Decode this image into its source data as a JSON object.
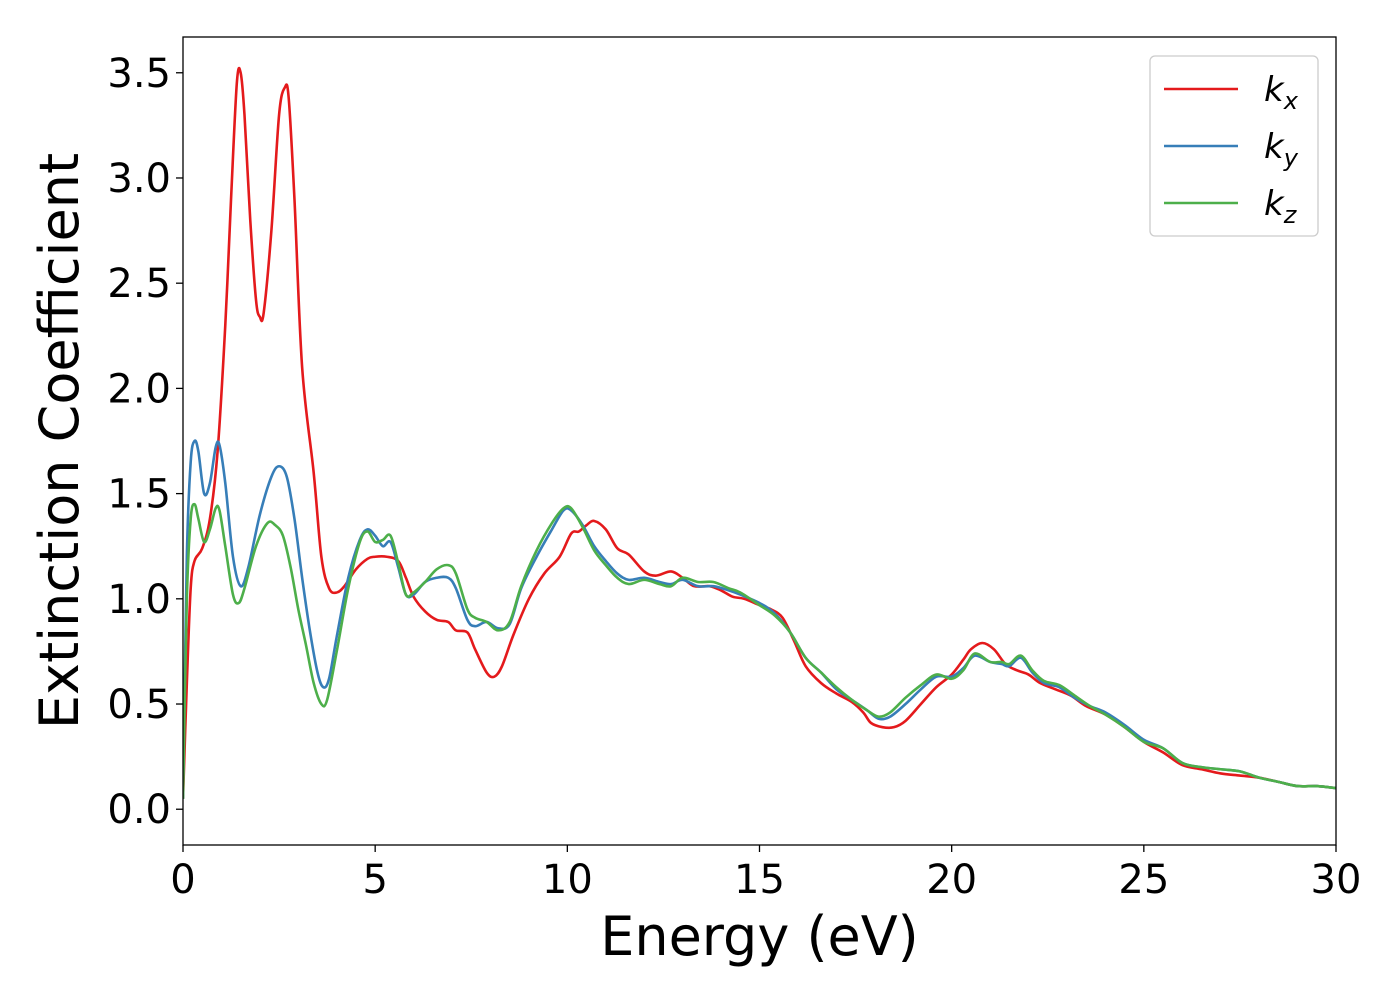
{
  "chart_data": {
    "type": "line",
    "title": "",
    "xlabel": "Energy (eV)",
    "ylabel": "Extinction Coefficient",
    "xlim": [
      0,
      30
    ],
    "ylim": [
      -0.17,
      3.67
    ],
    "xticks": [
      0,
      5,
      10,
      15,
      20,
      25,
      30
    ],
    "xtick_labels": [
      "0",
      "5",
      "10",
      "15",
      "20",
      "25",
      "30"
    ],
    "yticks": [
      0.0,
      0.5,
      1.0,
      1.5,
      2.0,
      2.5,
      3.0,
      3.5
    ],
    "ytick_labels": [
      "0.0",
      "0.5",
      "1.0",
      "1.5",
      "2.0",
      "2.5",
      "3.0",
      "3.5"
    ],
    "grid": false,
    "legend": {
      "position": "top-right"
    },
    "series": [
      {
        "name": "k_x",
        "label_main": "k",
        "label_sub": "x",
        "color": "#e41a1c",
        "points": [
          [
            0,
            0.05
          ],
          [
            0.1,
            0.6
          ],
          [
            0.2,
            1.05
          ],
          [
            0.3,
            1.18
          ],
          [
            0.5,
            1.24
          ],
          [
            0.7,
            1.38
          ],
          [
            0.9,
            1.7
          ],
          [
            1.1,
            2.3
          ],
          [
            1.25,
            2.9
          ],
          [
            1.4,
            3.45
          ],
          [
            1.5,
            3.5
          ],
          [
            1.6,
            3.3
          ],
          [
            1.75,
            2.8
          ],
          [
            1.9,
            2.42
          ],
          [
            2.0,
            2.34
          ],
          [
            2.1,
            2.36
          ],
          [
            2.3,
            2.75
          ],
          [
            2.5,
            3.3
          ],
          [
            2.65,
            3.43
          ],
          [
            2.75,
            3.38
          ],
          [
            2.9,
            2.9
          ],
          [
            3.1,
            2.1
          ],
          [
            3.4,
            1.6
          ],
          [
            3.6,
            1.2
          ],
          [
            3.8,
            1.05
          ],
          [
            4.0,
            1.03
          ],
          [
            4.2,
            1.06
          ],
          [
            4.5,
            1.14
          ],
          [
            4.8,
            1.19
          ],
          [
            5.0,
            1.2
          ],
          [
            5.3,
            1.2
          ],
          [
            5.6,
            1.18
          ],
          [
            5.8,
            1.1
          ],
          [
            6.0,
            1.01
          ],
          [
            6.3,
            0.94
          ],
          [
            6.6,
            0.9
          ],
          [
            6.9,
            0.89
          ],
          [
            7.1,
            0.85
          ],
          [
            7.4,
            0.84
          ],
          [
            7.6,
            0.76
          ],
          [
            7.9,
            0.65
          ],
          [
            8.1,
            0.63
          ],
          [
            8.3,
            0.68
          ],
          [
            8.6,
            0.83
          ],
          [
            9.0,
            1.0
          ],
          [
            9.4,
            1.12
          ],
          [
            9.8,
            1.2
          ],
          [
            10.1,
            1.31
          ],
          [
            10.3,
            1.32
          ],
          [
            10.5,
            1.35
          ],
          [
            10.7,
            1.37
          ],
          [
            11.0,
            1.33
          ],
          [
            11.3,
            1.24
          ],
          [
            11.6,
            1.21
          ],
          [
            12.0,
            1.13
          ],
          [
            12.3,
            1.11
          ],
          [
            12.7,
            1.13
          ],
          [
            13.0,
            1.1
          ],
          [
            13.3,
            1.06
          ],
          [
            13.7,
            1.06
          ],
          [
            14.0,
            1.04
          ],
          [
            14.3,
            1.01
          ],
          [
            14.6,
            1.0
          ],
          [
            15.0,
            0.97
          ],
          [
            15.3,
            0.95
          ],
          [
            15.6,
            0.91
          ],
          [
            15.9,
            0.8
          ],
          [
            16.2,
            0.68
          ],
          [
            16.6,
            0.6
          ],
          [
            17.0,
            0.55
          ],
          [
            17.4,
            0.51
          ],
          [
            17.7,
            0.46
          ],
          [
            17.9,
            0.41
          ],
          [
            18.2,
            0.39
          ],
          [
            18.5,
            0.39
          ],
          [
            18.8,
            0.42
          ],
          [
            19.2,
            0.5
          ],
          [
            19.6,
            0.58
          ],
          [
            20.0,
            0.64
          ],
          [
            20.3,
            0.71
          ],
          [
            20.5,
            0.76
          ],
          [
            20.8,
            0.79
          ],
          [
            21.1,
            0.76
          ],
          [
            21.4,
            0.69
          ],
          [
            21.7,
            0.66
          ],
          [
            22.0,
            0.64
          ],
          [
            22.3,
            0.6
          ],
          [
            22.7,
            0.57
          ],
          [
            23.1,
            0.54
          ],
          [
            23.5,
            0.49
          ],
          [
            24.0,
            0.45
          ],
          [
            24.5,
            0.39
          ],
          [
            25.0,
            0.32
          ],
          [
            25.5,
            0.27
          ],
          [
            26.0,
            0.21
          ],
          [
            26.5,
            0.19
          ],
          [
            27.0,
            0.17
          ],
          [
            27.5,
            0.16
          ],
          [
            28.0,
            0.15
          ],
          [
            28.5,
            0.13
          ],
          [
            29.0,
            0.11
          ],
          [
            29.5,
            0.11
          ],
          [
            30.0,
            0.1
          ]
        ]
      },
      {
        "name": "k_y",
        "label_main": "k",
        "label_sub": "y",
        "color": "#377eb8",
        "points": [
          [
            0,
            0.05
          ],
          [
            0.1,
            1.2
          ],
          [
            0.2,
            1.65
          ],
          [
            0.3,
            1.75
          ],
          [
            0.4,
            1.7
          ],
          [
            0.55,
            1.5
          ],
          [
            0.7,
            1.55
          ],
          [
            0.85,
            1.72
          ],
          [
            0.95,
            1.73
          ],
          [
            1.1,
            1.55
          ],
          [
            1.3,
            1.2
          ],
          [
            1.5,
            1.06
          ],
          [
            1.7,
            1.15
          ],
          [
            2.0,
            1.4
          ],
          [
            2.3,
            1.58
          ],
          [
            2.5,
            1.63
          ],
          [
            2.7,
            1.58
          ],
          [
            2.9,
            1.38
          ],
          [
            3.1,
            1.1
          ],
          [
            3.3,
            0.85
          ],
          [
            3.5,
            0.65
          ],
          [
            3.65,
            0.58
          ],
          [
            3.8,
            0.62
          ],
          [
            4.0,
            0.82
          ],
          [
            4.3,
            1.1
          ],
          [
            4.6,
            1.28
          ],
          [
            4.8,
            1.33
          ],
          [
            5.0,
            1.3
          ],
          [
            5.2,
            1.25
          ],
          [
            5.4,
            1.27
          ],
          [
            5.6,
            1.15
          ],
          [
            5.8,
            1.02
          ],
          [
            6.0,
            1.02
          ],
          [
            6.3,
            1.08
          ],
          [
            6.6,
            1.1
          ],
          [
            6.9,
            1.1
          ],
          [
            7.1,
            1.05
          ],
          [
            7.4,
            0.9
          ],
          [
            7.6,
            0.87
          ],
          [
            7.9,
            0.89
          ],
          [
            8.2,
            0.86
          ],
          [
            8.5,
            0.88
          ],
          [
            8.8,
            1.05
          ],
          [
            9.2,
            1.2
          ],
          [
            9.6,
            1.33
          ],
          [
            9.9,
            1.42
          ],
          [
            10.1,
            1.42
          ],
          [
            10.4,
            1.35
          ],
          [
            10.7,
            1.25
          ],
          [
            11.0,
            1.18
          ],
          [
            11.3,
            1.12
          ],
          [
            11.6,
            1.09
          ],
          [
            12.0,
            1.1
          ],
          [
            12.4,
            1.08
          ],
          [
            12.7,
            1.07
          ],
          [
            13.0,
            1.09
          ],
          [
            13.4,
            1.06
          ],
          [
            13.8,
            1.06
          ],
          [
            14.2,
            1.04
          ],
          [
            14.5,
            1.02
          ],
          [
            15.0,
            0.98
          ],
          [
            15.4,
            0.93
          ],
          [
            15.8,
            0.84
          ],
          [
            16.2,
            0.72
          ],
          [
            16.6,
            0.65
          ],
          [
            17.0,
            0.57
          ],
          [
            17.4,
            0.52
          ],
          [
            17.8,
            0.47
          ],
          [
            18.1,
            0.43
          ],
          [
            18.4,
            0.44
          ],
          [
            18.8,
            0.5
          ],
          [
            19.2,
            0.57
          ],
          [
            19.6,
            0.63
          ],
          [
            20.0,
            0.63
          ],
          [
            20.3,
            0.67
          ],
          [
            20.6,
            0.73
          ],
          [
            21.0,
            0.7
          ],
          [
            21.3,
            0.69
          ],
          [
            21.5,
            0.68
          ],
          [
            21.8,
            0.72
          ],
          [
            22.1,
            0.65
          ],
          [
            22.4,
            0.6
          ],
          [
            22.8,
            0.58
          ],
          [
            23.2,
            0.53
          ],
          [
            23.6,
            0.49
          ],
          [
            24.0,
            0.46
          ],
          [
            24.5,
            0.4
          ],
          [
            25.0,
            0.33
          ],
          [
            25.5,
            0.29
          ],
          [
            26.0,
            0.22
          ],
          [
            26.5,
            0.2
          ],
          [
            27.0,
            0.19
          ],
          [
            27.5,
            0.18
          ],
          [
            28.0,
            0.15
          ],
          [
            28.5,
            0.13
          ],
          [
            29.0,
            0.11
          ],
          [
            29.5,
            0.11
          ],
          [
            30.0,
            0.1
          ]
        ]
      },
      {
        "name": "k_z",
        "label_main": "k",
        "label_sub": "z",
        "color": "#4daf4a",
        "points": [
          [
            0,
            0.05
          ],
          [
            0.1,
            1.0
          ],
          [
            0.2,
            1.38
          ],
          [
            0.3,
            1.45
          ],
          [
            0.4,
            1.38
          ],
          [
            0.55,
            1.27
          ],
          [
            0.7,
            1.33
          ],
          [
            0.85,
            1.43
          ],
          [
            0.95,
            1.42
          ],
          [
            1.1,
            1.25
          ],
          [
            1.3,
            1.02
          ],
          [
            1.45,
            0.98
          ],
          [
            1.6,
            1.05
          ],
          [
            1.9,
            1.25
          ],
          [
            2.2,
            1.36
          ],
          [
            2.4,
            1.35
          ],
          [
            2.6,
            1.3
          ],
          [
            2.8,
            1.15
          ],
          [
            3.0,
            0.95
          ],
          [
            3.2,
            0.78
          ],
          [
            3.4,
            0.6
          ],
          [
            3.6,
            0.5
          ],
          [
            3.75,
            0.52
          ],
          [
            4.0,
            0.75
          ],
          [
            4.3,
            1.05
          ],
          [
            4.6,
            1.27
          ],
          [
            4.8,
            1.32
          ],
          [
            5.0,
            1.27
          ],
          [
            5.2,
            1.28
          ],
          [
            5.4,
            1.3
          ],
          [
            5.6,
            1.17
          ],
          [
            5.8,
            1.02
          ],
          [
            6.0,
            1.03
          ],
          [
            6.3,
            1.08
          ],
          [
            6.6,
            1.14
          ],
          [
            6.9,
            1.16
          ],
          [
            7.1,
            1.12
          ],
          [
            7.4,
            0.95
          ],
          [
            7.6,
            0.91
          ],
          [
            7.9,
            0.89
          ],
          [
            8.2,
            0.85
          ],
          [
            8.5,
            0.89
          ],
          [
            8.8,
            1.06
          ],
          [
            9.2,
            1.23
          ],
          [
            9.6,
            1.36
          ],
          [
            9.9,
            1.43
          ],
          [
            10.1,
            1.43
          ],
          [
            10.4,
            1.34
          ],
          [
            10.7,
            1.23
          ],
          [
            11.0,
            1.16
          ],
          [
            11.3,
            1.1
          ],
          [
            11.6,
            1.07
          ],
          [
            12.0,
            1.09
          ],
          [
            12.4,
            1.07
          ],
          [
            12.7,
            1.06
          ],
          [
            13.0,
            1.1
          ],
          [
            13.4,
            1.08
          ],
          [
            13.8,
            1.08
          ],
          [
            14.2,
            1.05
          ],
          [
            14.5,
            1.03
          ],
          [
            15.0,
            0.97
          ],
          [
            15.4,
            0.92
          ],
          [
            15.8,
            0.84
          ],
          [
            16.2,
            0.72
          ],
          [
            16.6,
            0.65
          ],
          [
            17.0,
            0.58
          ],
          [
            17.4,
            0.52
          ],
          [
            17.8,
            0.47
          ],
          [
            18.1,
            0.44
          ],
          [
            18.4,
            0.46
          ],
          [
            18.8,
            0.53
          ],
          [
            19.2,
            0.59
          ],
          [
            19.6,
            0.64
          ],
          [
            20.0,
            0.62
          ],
          [
            20.3,
            0.66
          ],
          [
            20.6,
            0.74
          ],
          [
            21.0,
            0.7
          ],
          [
            21.3,
            0.7
          ],
          [
            21.5,
            0.69
          ],
          [
            21.8,
            0.73
          ],
          [
            22.1,
            0.66
          ],
          [
            22.4,
            0.61
          ],
          [
            22.8,
            0.59
          ],
          [
            23.2,
            0.54
          ],
          [
            23.6,
            0.49
          ],
          [
            24.0,
            0.45
          ],
          [
            24.5,
            0.39
          ],
          [
            25.0,
            0.32
          ],
          [
            25.5,
            0.29
          ],
          [
            26.0,
            0.22
          ],
          [
            26.5,
            0.2
          ],
          [
            27.0,
            0.19
          ],
          [
            27.5,
            0.18
          ],
          [
            28.0,
            0.15
          ],
          [
            28.5,
            0.13
          ],
          [
            29.0,
            0.11
          ],
          [
            29.5,
            0.11
          ],
          [
            30.0,
            0.1
          ]
        ]
      }
    ]
  }
}
